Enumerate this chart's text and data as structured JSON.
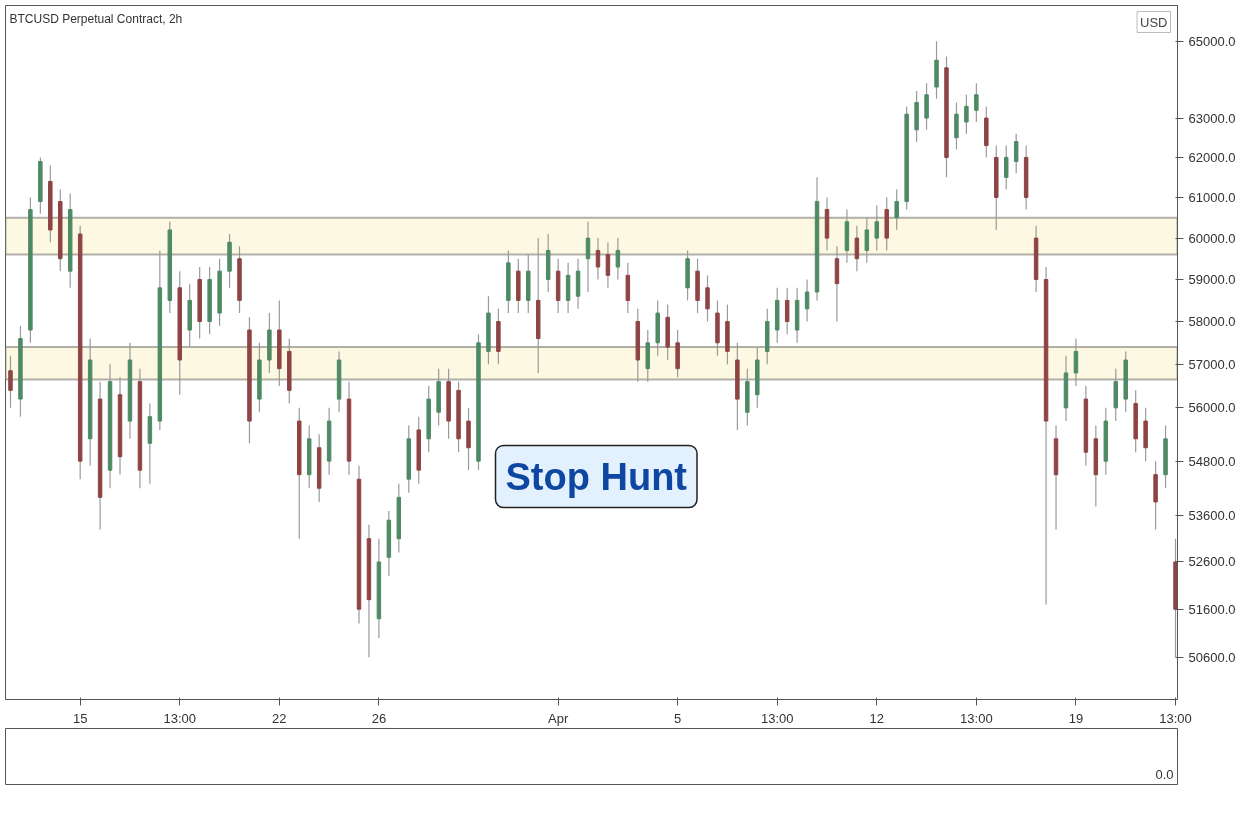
{
  "chart_data": [
    {
      "type": "candlestick",
      "title": "BTCUSD Perpetual Contract, 2h",
      "ylabel": "USD",
      "categories": [
        null,
        null,
        null,
        null,
        null,
        null,
        null,
        "15",
        null,
        null,
        null,
        null,
        null,
        null,
        null,
        null,
        null,
        "13:00",
        null,
        null,
        null,
        null,
        null,
        null,
        null,
        null,
        null,
        "22",
        null,
        null,
        null,
        null,
        null,
        null,
        null,
        null,
        null,
        "26",
        null,
        null,
        null,
        null,
        null,
        null,
        null,
        null,
        null,
        null,
        null,
        null,
        null,
        null,
        null,
        null,
        null,
        "Apr",
        null,
        null,
        null,
        null,
        null,
        null,
        null,
        null,
        null,
        null,
        null,
        "5",
        null,
        null,
        null,
        null,
        null,
        null,
        null,
        null,
        null,
        "13:00",
        null,
        null,
        null,
        null,
        null,
        null,
        null,
        null,
        null,
        "12",
        null,
        null,
        null,
        null,
        null,
        null,
        null,
        null,
        null,
        "13:00",
        null,
        null,
        null,
        null,
        null,
        null,
        null,
        null,
        null,
        "19",
        null,
        null,
        null,
        null,
        null,
        null,
        null,
        null,
        null,
        "13:00"
      ],
      "ohlc": [
        [
          56850,
          57200,
          56000,
          56400
        ],
        [
          56200,
          57900,
          55800,
          57600
        ],
        [
          57800,
          61000,
          57500,
          60700
        ],
        [
          60900,
          62000,
          60600,
          61900
        ],
        [
          61400,
          61800,
          59900,
          60200
        ],
        [
          60900,
          61200,
          59200,
          59500
        ],
        [
          59200,
          61100,
          58800,
          60700
        ],
        [
          60100,
          60300,
          54400,
          54800
        ],
        [
          55300,
          57600,
          54700,
          57100
        ],
        [
          56200,
          56600,
          53300,
          54000
        ],
        [
          54600,
          57000,
          54200,
          56600
        ],
        [
          56300,
          56700,
          54500,
          54900
        ],
        [
          55700,
          57500,
          55300,
          57100
        ],
        [
          56600,
          56900,
          54200,
          54600
        ],
        [
          55200,
          56100,
          54300,
          55800
        ],
        [
          55700,
          59700,
          55500,
          58800
        ],
        [
          58500,
          60400,
          58200,
          60200
        ],
        [
          58800,
          59200,
          56300,
          57100
        ],
        [
          57800,
          58900,
          57400,
          58500
        ],
        [
          59000,
          59300,
          57600,
          58000
        ],
        [
          58000,
          59300,
          57700,
          59000
        ],
        [
          58200,
          59500,
          57900,
          59200
        ],
        [
          59200,
          60100,
          58800,
          59900
        ],
        [
          59500,
          59800,
          58200,
          58500
        ],
        [
          57800,
          58100,
          55200,
          55700
        ],
        [
          56200,
          57500,
          55900,
          57100
        ],
        [
          57100,
          58200,
          56800,
          57800
        ],
        [
          57800,
          58500,
          56500,
          56900
        ],
        [
          57300,
          57600,
          56100,
          56400
        ],
        [
          55700,
          56000,
          53100,
          54500
        ],
        [
          54500,
          55600,
          54200,
          55300
        ],
        [
          55100,
          55400,
          53900,
          54200
        ],
        [
          54800,
          56000,
          54500,
          55700
        ],
        [
          56200,
          57300,
          55900,
          57100
        ],
        [
          56200,
          56600,
          54500,
          54800
        ],
        [
          54400,
          54700,
          51300,
          51600
        ],
        [
          53100,
          53400,
          50600,
          51800
        ],
        [
          51400,
          53100,
          51000,
          52600
        ],
        [
          52700,
          53700,
          52300,
          53500
        ],
        [
          53100,
          54300,
          52800,
          54000
        ],
        [
          54400,
          55600,
          54100,
          55300
        ],
        [
          55500,
          55800,
          54300,
          54600
        ],
        [
          55300,
          56500,
          55000,
          56200
        ],
        [
          55900,
          56900,
          55600,
          56600
        ],
        [
          56600,
          56900,
          55300,
          55700
        ],
        [
          56400,
          56600,
          55000,
          55300
        ],
        [
          55700,
          56000,
          54600,
          55100
        ],
        [
          54800,
          57700,
          54600,
          57500
        ],
        [
          57300,
          58600,
          57000,
          58200
        ],
        [
          58000,
          58300,
          57000,
          57300
        ],
        [
          58500,
          59700,
          58200,
          59400
        ],
        [
          59200,
          59500,
          58200,
          58500
        ],
        [
          58500,
          59600,
          58200,
          59200
        ],
        [
          58500,
          60000,
          56800,
          57600
        ],
        [
          59000,
          60100,
          58700,
          59700
        ],
        [
          59200,
          59500,
          58200,
          58500
        ],
        [
          58500,
          59400,
          58200,
          59100
        ],
        [
          58600,
          59500,
          58300,
          59200
        ],
        [
          59500,
          60400,
          58700,
          60000
        ],
        [
          59700,
          60000,
          59000,
          59300
        ],
        [
          59600,
          59900,
          58800,
          59100
        ],
        [
          59300,
          60000,
          59000,
          59700
        ],
        [
          59100,
          59400,
          58200,
          58500
        ],
        [
          58000,
          58300,
          56600,
          57100
        ],
        [
          56900,
          57800,
          56600,
          57500
        ],
        [
          57500,
          58500,
          57200,
          58200
        ],
        [
          58100,
          58400,
          57100,
          57400
        ],
        [
          57500,
          57800,
          56700,
          56900
        ],
        [
          58800,
          59700,
          58500,
          59500
        ],
        [
          59200,
          59500,
          58200,
          58500
        ],
        [
          58800,
          59100,
          58000,
          58300
        ],
        [
          58200,
          58500,
          57200,
          57500
        ],
        [
          58000,
          58400,
          57000,
          57300
        ],
        [
          57100,
          57500,
          55500,
          56200
        ],
        [
          55900,
          56900,
          55600,
          56600
        ],
        [
          56300,
          57400,
          56000,
          57100
        ],
        [
          57300,
          58300,
          57000,
          58000
        ],
        [
          57800,
          58800,
          57500,
          58500
        ],
        [
          58500,
          58800,
          57700,
          58000
        ],
        [
          57800,
          58800,
          57500,
          58500
        ],
        [
          58300,
          59000,
          58000,
          58700
        ],
        [
          58700,
          61500,
          58500,
          60900
        ],
        [
          60700,
          61000,
          59700,
          60000
        ],
        [
          59500,
          59800,
          58000,
          58900
        ],
        [
          59700,
          60700,
          59400,
          60400
        ],
        [
          60000,
          60300,
          59200,
          59500
        ],
        [
          59700,
          60500,
          59400,
          60200
        ],
        [
          60000,
          60800,
          59700,
          60400
        ],
        [
          60700,
          61000,
          59700,
          60000
        ],
        [
          60500,
          61200,
          60200,
          60900
        ],
        [
          60900,
          63300,
          60700,
          63100
        ],
        [
          62700,
          63700,
          62400,
          63400
        ],
        [
          63000,
          63900,
          62700,
          63600
        ],
        [
          63800,
          65000,
          63500,
          64500
        ],
        [
          64300,
          64600,
          61500,
          62000
        ],
        [
          62500,
          63400,
          62200,
          63100
        ],
        [
          62900,
          63600,
          62600,
          63300
        ],
        [
          63200,
          63900,
          62900,
          63600
        ],
        [
          63000,
          63300,
          62000,
          62300
        ],
        [
          62000,
          62300,
          60200,
          61000
        ],
        [
          61500,
          62300,
          61200,
          62000
        ],
        [
          61900,
          62600,
          61600,
          62400
        ],
        [
          62000,
          62300,
          60700,
          61000
        ],
        [
          60000,
          60300,
          58700,
          59000
        ],
        [
          59000,
          59300,
          51700,
          55700
        ],
        [
          55300,
          55600,
          53300,
          54500
        ],
        [
          56000,
          57200,
          55700,
          56800
        ],
        [
          56800,
          57600,
          56500,
          57300
        ],
        [
          56200,
          56500,
          54700,
          55000
        ],
        [
          55300,
          55600,
          53800,
          54500
        ],
        [
          54800,
          56000,
          54500,
          55700
        ],
        [
          56000,
          56900,
          55700,
          56600
        ],
        [
          56200,
          57300,
          55900,
          57100
        ],
        [
          56100,
          56400,
          55000,
          55300
        ],
        [
          55700,
          56000,
          54800,
          55100
        ],
        [
          54500,
          54800,
          53300,
          53900
        ],
        [
          54500,
          55600,
          54200,
          55300
        ],
        [
          52600,
          53100,
          50600,
          51600
        ]
      ],
      "log": true,
      "ylim": [
        49740,
        65950
      ],
      "yticks": [
        {
          "value": 65000,
          "label": "65000.0"
        },
        {
          "value": 63000,
          "label": "63000.0"
        },
        {
          "value": 62000,
          "label": "62000.0"
        },
        {
          "value": 61000,
          "label": "61000.0"
        },
        {
          "value": 60000,
          "label": "60000.0"
        },
        {
          "value": 59000,
          "label": "59000.0"
        },
        {
          "value": 58000,
          "label": "58000.0"
        },
        {
          "value": 57000,
          "label": "57000.0"
        },
        {
          "value": 56000,
          "label": "56000.0"
        },
        {
          "value": 54800,
          "label": "54800.0"
        },
        {
          "value": 53600,
          "label": "53600.0"
        },
        {
          "value": 52600,
          "label": "52600.0"
        },
        {
          "value": 51600,
          "label": "51600.0"
        },
        {
          "value": 50600,
          "label": "50600.0"
        }
      ],
      "grid": false,
      "bands": [
        {
          "axis": "y",
          "from": 59600,
          "to": 60500,
          "color": "#fdf8e1"
        },
        {
          "axis": "y",
          "from": 56650,
          "to": 57400,
          "color": "#fdf8e1"
        }
      ],
      "annotations": [
        "Stop Hunt"
      ]
    },
    {
      "type": "other",
      "annotations": [
        "0.0"
      ]
    }
  ]
}
